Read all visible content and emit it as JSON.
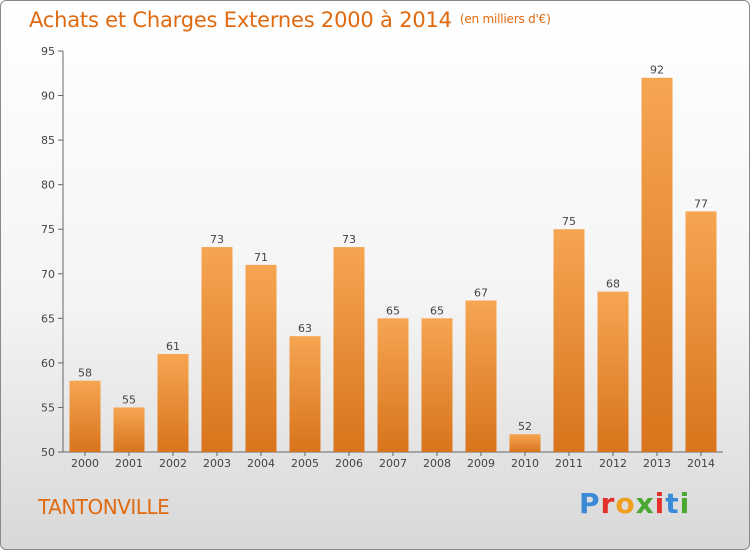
{
  "title": "Achats et Charges Externes 2000 à 2014",
  "subtitle": "(en milliers d'€)",
  "commune": "TANTONVILLE",
  "brand": {
    "letters": [
      "P",
      "r",
      "o",
      "x",
      "i",
      "t",
      "i"
    ],
    "colors": [
      "#3a8ad8",
      "#e4302a",
      "#f0a020",
      "#4aa830",
      "#e4302a",
      "#3a8ad8",
      "#4aa830"
    ]
  },
  "colors": {
    "bar_top": "#f6a552",
    "bar_bottom": "#d8741c",
    "title": "#e06a10"
  },
  "chart_data": {
    "type": "bar",
    "categories": [
      "2000",
      "2001",
      "2002",
      "2003",
      "2004",
      "2005",
      "2006",
      "2007",
      "2008",
      "2009",
      "2010",
      "2011",
      "2012",
      "2013",
      "2014"
    ],
    "values": [
      58,
      55,
      61,
      73,
      71,
      63,
      73,
      65,
      65,
      67,
      52,
      75,
      68,
      92,
      77
    ],
    "ylim": [
      50,
      95
    ],
    "yticks": [
      50,
      55,
      60,
      65,
      70,
      75,
      80,
      85,
      90,
      95
    ],
    "grid": false,
    "data_labels": true
  }
}
